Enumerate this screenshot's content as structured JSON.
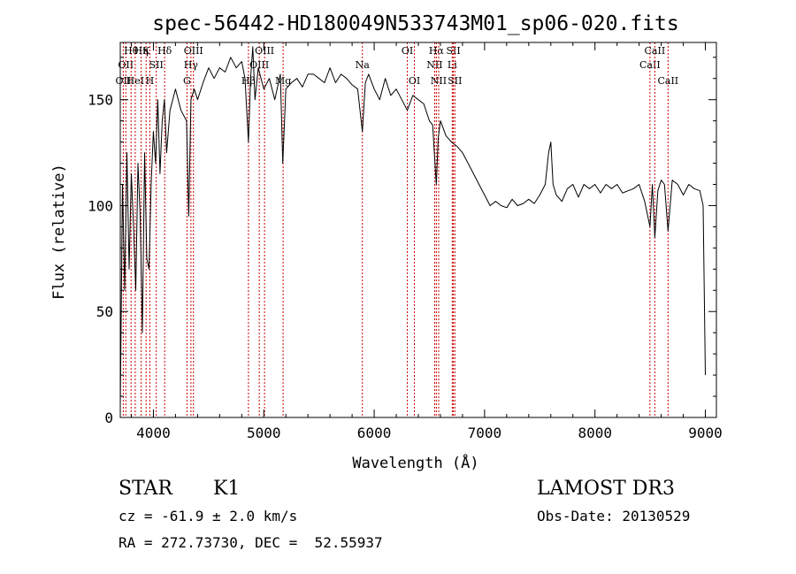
{
  "chart_data": {
    "type": "line",
    "title": "spec-56442-HD180049N533743M01_sp06-020.fits",
    "xlabel": "Wavelength (Å)",
    "ylabel": "Flux (relative)",
    "xlim": [
      3700,
      9100
    ],
    "ylim": [
      0,
      177
    ],
    "xticks": [
      4000,
      5000,
      6000,
      7000,
      8000,
      9000
    ],
    "yticks": [
      0,
      50,
      100,
      150
    ],
    "grid": false,
    "line_color": "#000000",
    "marker_color": "#cc0000",
    "series": [
      {
        "x": [
          3700,
          3720,
          3740,
          3760,
          3780,
          3800,
          3820,
          3840,
          3860,
          3880,
          3900,
          3920,
          3940,
          3960,
          3980,
          4000,
          4020,
          4040,
          4060,
          4080,
          4100,
          4120,
          4150,
          4200,
          4250,
          4300,
          4320,
          4340,
          4370,
          4400,
          4450,
          4500,
          4550,
          4600,
          4650,
          4700,
          4750,
          4800,
          4830,
          4861,
          4880,
          4900,
          4920,
          4950,
          5000,
          5050,
          5100,
          5150,
          5172,
          5200,
          5250,
          5300,
          5350,
          5400,
          5450,
          5500,
          5550,
          5600,
          5650,
          5700,
          5750,
          5800,
          5850,
          5893,
          5920,
          5950,
          6000,
          6050,
          6100,
          6150,
          6200,
          6250,
          6300,
          6350,
          6400,
          6450,
          6500,
          6530,
          6563,
          6580,
          6600,
          6650,
          6700,
          6750,
          6800,
          6850,
          6900,
          6950,
          7000,
          7050,
          7100,
          7150,
          7200,
          7250,
          7300,
          7350,
          7400,
          7450,
          7500,
          7550,
          7580,
          7600,
          7620,
          7650,
          7700,
          7750,
          7800,
          7850,
          7900,
          7950,
          8000,
          8050,
          8100,
          8150,
          8200,
          8250,
          8300,
          8350,
          8400,
          8450,
          8498,
          8520,
          8542,
          8570,
          8600,
          8630,
          8662,
          8700,
          8750,
          8800,
          8850,
          8900,
          8950,
          8980,
          9000
        ],
        "y": [
          5,
          110,
          60,
          125,
          70,
          115,
          90,
          60,
          120,
          95,
          40,
          125,
          75,
          70,
          110,
          135,
          120,
          150,
          115,
          140,
          150,
          125,
          145,
          155,
          145,
          140,
          95,
          150,
          155,
          150,
          158,
          165,
          160,
          165,
          163,
          170,
          165,
          168,
          160,
          130,
          160,
          175,
          150,
          165,
          155,
          160,
          150,
          162,
          120,
          155,
          158,
          160,
          156,
          162,
          162,
          160,
          158,
          165,
          158,
          162,
          160,
          157,
          155,
          135,
          158,
          162,
          155,
          150,
          160,
          152,
          155,
          150,
          145,
          152,
          150,
          148,
          140,
          138,
          110,
          132,
          140,
          133,
          130,
          128,
          125,
          120,
          115,
          110,
          105,
          100,
          102,
          100,
          99,
          103,
          100,
          101,
          103,
          101,
          105,
          110,
          125,
          130,
          110,
          105,
          102,
          108,
          110,
          104,
          110,
          108,
          110,
          106,
          110,
          108,
          110,
          106,
          107,
          108,
          110,
          102,
          90,
          110,
          85,
          107,
          112,
          110,
          88,
          112,
          110,
          105,
          110,
          108,
          107,
          100,
          20
        ]
      }
    ],
    "line_markers": [
      {
        "x": 3727,
        "row": 0,
        "label": "OII"
      },
      {
        "x": 3750,
        "row": 1,
        "label": "OII"
      },
      {
        "x": 3798,
        "row": 2,
        "label": "Hθ"
      },
      {
        "x": 3835,
        "row": 0,
        "label": "HeI"
      },
      {
        "x": 3889,
        "row": 2,
        "label": "Hη"
      },
      {
        "x": 3934,
        "row": 2,
        "label": "K"
      },
      {
        "x": 3968,
        "row": 0,
        "label": "H"
      },
      {
        "x": 4026,
        "row": 1,
        "label": "SII"
      },
      {
        "x": 4102,
        "row": 2,
        "label": "Hδ"
      },
      {
        "x": 4304,
        "row": 0,
        "label": "G"
      },
      {
        "x": 4340,
        "row": 1,
        "label": "Hγ"
      },
      {
        "x": 4363,
        "row": 2,
        "label": "OIII"
      },
      {
        "x": 4861,
        "row": 0,
        "label": "Hβ"
      },
      {
        "x": 4959,
        "row": 1,
        "label": "OIII"
      },
      {
        "x": 5007,
        "row": 2,
        "label": "OIII"
      },
      {
        "x": 5175,
        "row": 0,
        "label": "Mg"
      },
      {
        "x": 5893,
        "row": 1,
        "label": "Na"
      },
      {
        "x": 6300,
        "row": 2,
        "label": "OI"
      },
      {
        "x": 6364,
        "row": 0,
        "label": "OI"
      },
      {
        "x": 6548,
        "row": 1,
        "label": "NII"
      },
      {
        "x": 6563,
        "row": 2,
        "label": "Hα"
      },
      {
        "x": 6584,
        "row": 0,
        "label": "NII"
      },
      {
        "x": 6707,
        "row": 1,
        "label": "Li"
      },
      {
        "x": 6717,
        "row": 2,
        "label": "SII"
      },
      {
        "x": 6731,
        "row": 0,
        "label": "SII"
      },
      {
        "x": 8498,
        "row": 1,
        "label": "CaII"
      },
      {
        "x": 8542,
        "row": 2,
        "label": "CaII"
      },
      {
        "x": 8662,
        "row": 0,
        "label": "CaII"
      }
    ]
  },
  "info": {
    "object_type": "STAR",
    "subclass": "K1",
    "survey": "LAMOST DR3",
    "redshift": "cz = -61.9 ± 2.0 km/s",
    "obs_date": "Obs-Date: 20130529",
    "coords": "RA = 272.73730, DEC =  52.55937"
  }
}
